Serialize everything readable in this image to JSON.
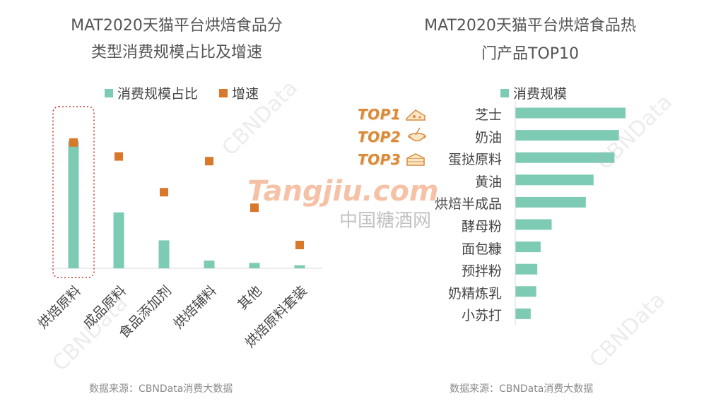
{
  "left": {
    "title_line1": "MAT2020天猫平台烘焙食品分",
    "title_line2": "类型消费规模占比及增速",
    "legend": {
      "share": "消费规模占比",
      "growth": "增速"
    },
    "source": "数据来源：CBNData消费大数据"
  },
  "right": {
    "title_line1": "MAT2020天猫平台烘焙食品热",
    "title_line2": "门产品TOP10",
    "legend": {
      "scale": "消费规模"
    },
    "top_tags": [
      "TOP1",
      "TOP2",
      "TOP3"
    ],
    "source": "数据来源：CBNData消费大数据"
  },
  "watermark": {
    "brand": "Tangjiu.com",
    "brand_cn": "中国糖酒网",
    "cbn": "CBNData"
  },
  "colors": {
    "teal": "#7ecbb5",
    "orange": "#d9772b",
    "highlight": "#c0392b"
  },
  "chart_data": [
    {
      "type": "bar",
      "title": "MAT2020天猫平台烘焙食品分类型消费规模占比及增速",
      "categories": [
        "烘焙原料",
        "成品原料",
        "食品添加剂",
        "烘焙辅料",
        "其他",
        "烘焙原料套装"
      ],
      "series": [
        {
          "name": "消费规模占比",
          "kind": "bar",
          "values": [
            0.82,
            0.36,
            0.18,
            0.05,
            0.035,
            0.02
          ]
        },
        {
          "name": "增速",
          "kind": "marker",
          "values": [
            0.81,
            0.72,
            0.49,
            0.69,
            0.39,
            0.15
          ]
        }
      ],
      "ylim": [
        0,
        1
      ],
      "highlight_category": "烘焙原料",
      "legend_position": "top"
    },
    {
      "type": "bar",
      "orientation": "horizontal",
      "title": "MAT2020天猫平台烘焙食品热门产品TOP10",
      "categories": [
        "芝士",
        "奶油",
        "蛋挞原料",
        "黄油",
        "烘焙半成品",
        "酵母粉",
        "面包糠",
        "预拌粉",
        "奶精炼乳",
        "小苏打"
      ],
      "series": [
        {
          "name": "消费规模",
          "values": [
            1.0,
            0.94,
            0.9,
            0.71,
            0.64,
            0.33,
            0.23,
            0.2,
            0.19,
            0.14
          ]
        }
      ],
      "xlim": [
        0,
        1
      ],
      "legend_position": "top"
    }
  ]
}
